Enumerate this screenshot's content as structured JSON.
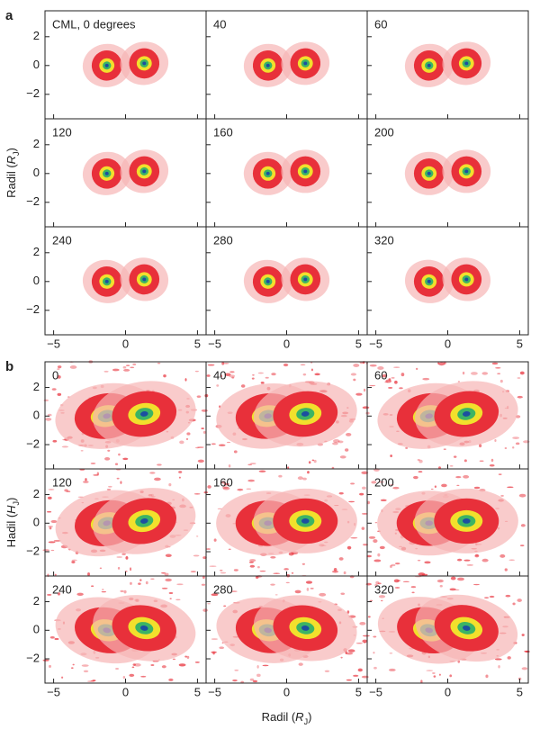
{
  "figure": {
    "parts": [
      {
        "letter": "a",
        "ylabel": [
          "Radil (",
          "R",
          "J",
          ")"
        ],
        "panels": [
          "CML, 0 degrees",
          "40",
          "60",
          "120",
          "160",
          "200",
          "240",
          "280",
          "320"
        ]
      },
      {
        "letter": "b",
        "ylabel": [
          "Hadil (",
          "H",
          "J",
          ")"
        ],
        "panels": [
          "0",
          "40",
          "60",
          "120",
          "160",
          "200",
          "240",
          "280",
          "320"
        ]
      }
    ],
    "xlabel": [
      "Radil (",
      "R",
      "J",
      ")"
    ],
    "xlim": [
      -5.6,
      5.6
    ],
    "ylim": [
      -3.7,
      3.8
    ],
    "xticks": [
      {
        "value": -5,
        "label": "−5"
      },
      0,
      5
    ],
    "yticks": [
      {
        "value": -2,
        "label": "−2"
      },
      0,
      2
    ]
  }
}
